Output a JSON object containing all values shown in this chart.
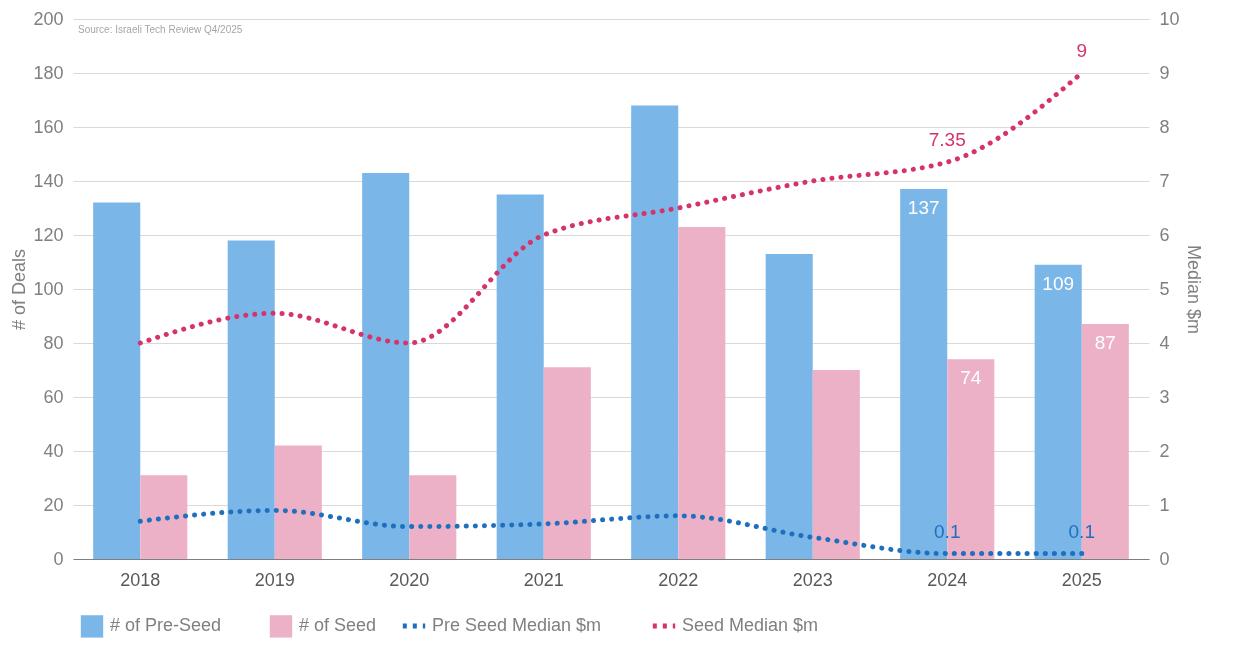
{
  "chart_data": {
    "type": "bar",
    "categories": [
      "2018",
      "2019",
      "2020",
      "2021",
      "2022",
      "2023",
      "2024",
      "2025"
    ],
    "series": [
      {
        "name": "# of  Pre-Seed",
        "color": "#7ab6e8",
        "values": [
          132,
          118,
          143,
          135,
          168,
          113,
          137,
          109
        ],
        "value_labels": [
          null,
          null,
          null,
          null,
          null,
          null,
          "137",
          "109"
        ]
      },
      {
        "name": "# of  Seed",
        "color": "#ecb1c7",
        "values": [
          31,
          42,
          31,
          71,
          123,
          70,
          74,
          87
        ],
        "value_labels": [
          null,
          null,
          null,
          null,
          null,
          null,
          "74",
          "87"
        ]
      },
      {
        "name": "Pre Seed Median $m",
        "type": "line",
        "axis": "y2",
        "color": "#1f6fbf",
        "line_style": "dotted",
        "marker": "none",
        "values": [
          0.7,
          0.9,
          0.6,
          0.65,
          0.8,
          0.4,
          0.1,
          0.1
        ],
        "value_labels": [
          null,
          null,
          null,
          null,
          null,
          null,
          "0.1",
          "0.1"
        ]
      },
      {
        "name": "Seed Median $m",
        "type": "line",
        "axis": "y2",
        "color": "#d6336c",
        "line_style": "dotted",
        "marker": "none",
        "values": [
          4,
          4.55,
          4,
          6,
          6.5,
          7,
          7.35,
          9
        ],
        "value_labels": [
          null,
          null,
          null,
          null,
          null,
          null,
          "7.35",
          "9"
        ]
      }
    ],
    "ylabel": "# of Deals",
    "y2label": "Median $m",
    "ylim": [
      0,
      200
    ],
    "yticks": [
      0,
      20,
      40,
      60,
      80,
      100,
      120,
      140,
      160,
      180,
      200
    ],
    "y2lim": [
      0,
      10
    ],
    "y2ticks": [
      0,
      1,
      2,
      3,
      4,
      5,
      6,
      7,
      8,
      9,
      10
    ],
    "grid": "y",
    "legend": "bottom",
    "annotations": [
      "Source: Israeli Tech Review Q4/2025"
    ]
  }
}
